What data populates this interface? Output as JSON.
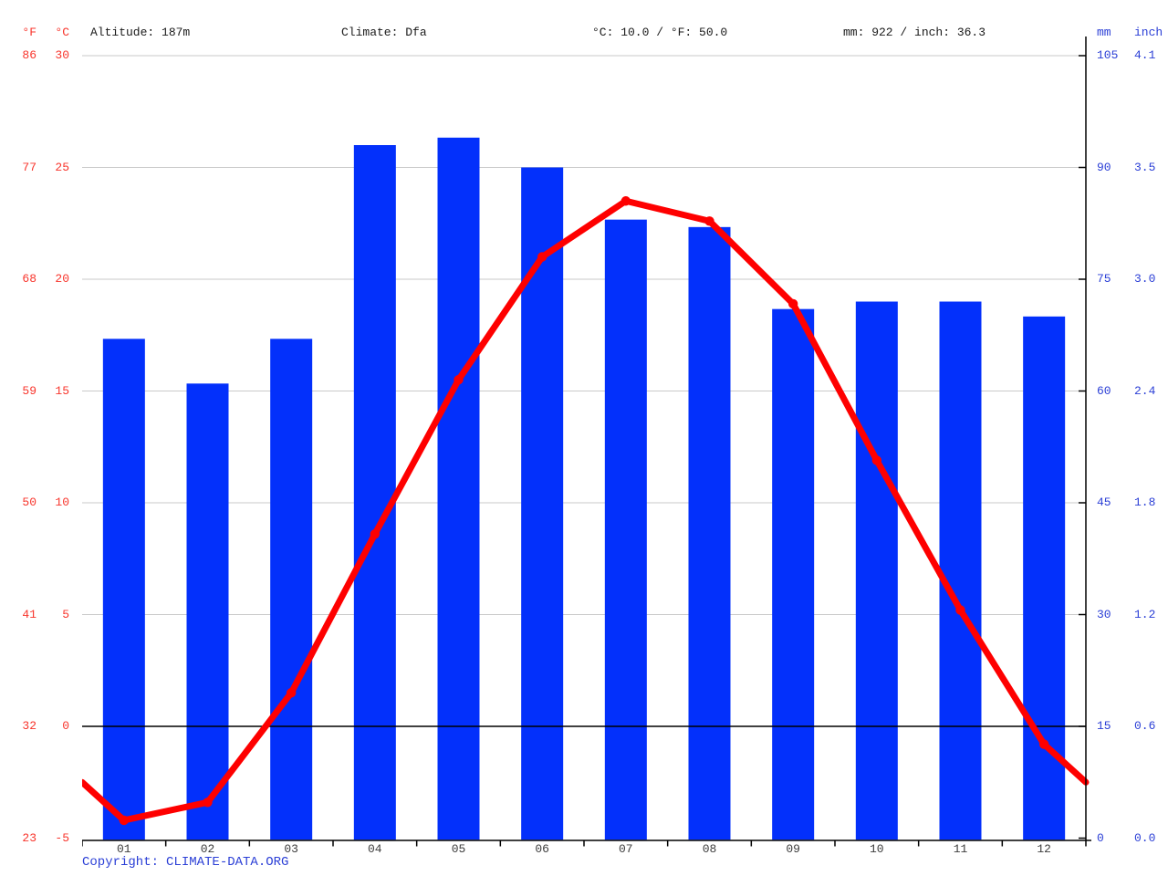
{
  "header": {
    "fahrenheit_unit": "°F",
    "celsius_unit": "°C",
    "altitude": "Altitude: 187m",
    "climate": "Climate: Dfa",
    "temperature_summary": "°C: 10.0 / °F: 50.0",
    "precipitation_summary": "mm: 922 / inch: 36.3",
    "mm_unit": "mm",
    "inch_unit": "inch"
  },
  "footer": {
    "copyright_prefix": "Copyright:",
    "copyright_link": "CLIMATE-DATA.ORG"
  },
  "chart_data": {
    "type": "bar",
    "subtype": "climate combo chart: precipitation bars + temperature line",
    "title": "",
    "categories": [
      "01",
      "02",
      "03",
      "04",
      "05",
      "06",
      "07",
      "08",
      "09",
      "10",
      "11",
      "12"
    ],
    "series": [
      {
        "name": "precipitation",
        "type": "bar",
        "unit": "mm",
        "values": [
          67,
          61,
          67,
          93,
          94,
          90,
          83,
          82,
          71,
          72,
          72,
          70
        ]
      },
      {
        "name": "temperature",
        "type": "line",
        "unit": "°C",
        "values": [
          -4.2,
          -3.4,
          1.5,
          8.6,
          15.5,
          21.0,
          23.5,
          22.6,
          18.9,
          11.9,
          5.2,
          -0.8
        ]
      }
    ],
    "axes": {
      "left_fahrenheit_ticks": [
        86,
        77,
        68,
        59,
        50,
        41,
        32,
        23
      ],
      "left_celsius_ticks": [
        30,
        25,
        20,
        15,
        10,
        5,
        0,
        -5
      ],
      "right_mm_ticks": [
        105,
        90,
        75,
        60,
        45,
        30,
        15,
        0
      ],
      "right_inch_ticks": [
        "4.1",
        "3.5",
        "3.0",
        "2.4",
        "1.8",
        "1.2",
        "0.6",
        "0.0"
      ],
      "celsius_range": [
        -5,
        30
      ],
      "mm_range": [
        0,
        105
      ],
      "gridlines": "horizontal at each tick; 0°C line drawn black over bars",
      "legend_position": "none"
    },
    "colors": {
      "bar": "#0330fb",
      "line": "#fe0000",
      "temperature_label": "#f8352c",
      "precipitation_label": "#2b3fd6",
      "gridline": "#cacaca",
      "zero_line": "#000000",
      "axis_line": "#000000",
      "month_label": "#3d3d3d",
      "header_text": "#1a1a1a"
    }
  }
}
